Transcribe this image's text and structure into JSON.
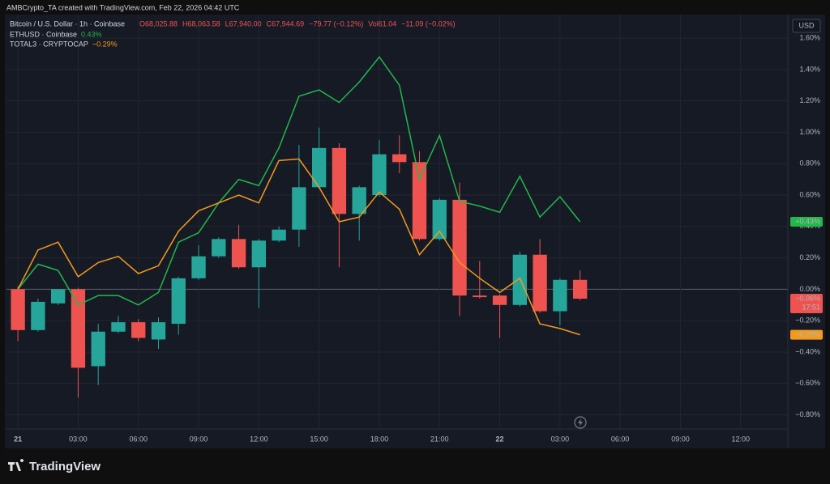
{
  "header": "AMBCrypto_TA created with TradingView.com, Feb 22, 2026 04:42 UTC",
  "footer_logo": "TradingView",
  "chart_data": {
    "type": "candlestick",
    "currency": "USD",
    "candles": {
      "name": "Bitcoin / U.S. Dollar · 1h · Coinbase",
      "ohlc_text": [
        "O68,025.88",
        "H68,063.58",
        "L67,940.00",
        "C67,944.69",
        "−79.77 (−0.12%)",
        "Vol61.04",
        "−11.09 (−0.02%)"
      ],
      "up_color": "#26a69a",
      "down_color": "#ef5350",
      "open": [
        0.0,
        -0.26,
        -0.09,
        0.0,
        -0.49,
        -0.27,
        -0.21,
        -0.32,
        -0.22,
        0.07,
        0.21,
        0.32,
        0.14,
        0.31,
        0.38,
        0.65,
        0.9,
        0.48,
        0.6,
        0.86,
        0.81,
        0.32,
        0.57,
        -0.04,
        -0.04,
        -0.1,
        0.22,
        -0.14,
        0.06
      ],
      "high": [
        0.02,
        -0.06,
        0.0,
        0.01,
        -0.22,
        -0.17,
        -0.19,
        -0.18,
        0.08,
        0.28,
        0.33,
        0.41,
        0.32,
        0.4,
        0.92,
        1.03,
        0.93,
        0.66,
        0.95,
        0.98,
        0.88,
        0.58,
        0.68,
        0.18,
        -0.03,
        0.24,
        0.32,
        0.07,
        0.12
      ],
      "low": [
        -0.33,
        -0.27,
        -0.1,
        -0.69,
        -0.61,
        -0.28,
        -0.33,
        -0.38,
        -0.29,
        0.06,
        0.2,
        0.13,
        -0.12,
        0.3,
        0.27,
        0.64,
        0.14,
        0.31,
        0.59,
        0.74,
        0.31,
        0.31,
        -0.17,
        -0.06,
        -0.31,
        -0.11,
        -0.15,
        -0.23,
        -0.07
      ],
      "close": [
        -0.26,
        -0.08,
        0.0,
        -0.5,
        -0.27,
        -0.21,
        -0.31,
        -0.21,
        0.07,
        0.21,
        0.32,
        0.14,
        0.31,
        0.38,
        0.65,
        0.9,
        0.48,
        0.65,
        0.86,
        0.81,
        0.32,
        0.57,
        -0.04,
        -0.05,
        -0.1,
        0.22,
        -0.14,
        0.06,
        -0.06
      ],
      "last": {
        "value": -0.06,
        "label": "−0.06%"
      },
      "countdown": "17:51"
    },
    "x": [
      0,
      1,
      2,
      3,
      4,
      5,
      6,
      7,
      8,
      9,
      10,
      11,
      12,
      13,
      14,
      15,
      16,
      17,
      18,
      19,
      20,
      21,
      22,
      23,
      24,
      25,
      26,
      27,
      28
    ],
    "series": [
      {
        "name": "ETHUSD · Coinbase",
        "legend_value": "0.43%",
        "color": "#22b84a",
        "values": [
          0.0,
          0.16,
          0.12,
          -0.1,
          -0.04,
          -0.04,
          -0.1,
          -0.02,
          0.3,
          0.36,
          0.55,
          0.7,
          0.66,
          0.9,
          1.23,
          1.27,
          1.19,
          1.32,
          1.48,
          1.3,
          0.7,
          0.98,
          0.56,
          0.53,
          0.49,
          0.72,
          0.46,
          0.59,
          0.43
        ],
        "last": {
          "value": 0.43,
          "label": "+0.43%"
        }
      },
      {
        "name": "TOTAL3 · CRYPTOCAP",
        "legend_value": "−0.29%",
        "color": "#f29a1e",
        "values": [
          0.0,
          0.25,
          0.3,
          0.08,
          0.17,
          0.21,
          0.1,
          0.15,
          0.37,
          0.5,
          0.55,
          0.6,
          0.55,
          0.82,
          0.83,
          0.65,
          0.43,
          0.46,
          0.62,
          0.51,
          0.22,
          0.37,
          0.17,
          0.07,
          -0.02,
          0.07,
          -0.22,
          -0.25,
          -0.29
        ],
        "last": {
          "value": -0.29,
          "label": "−0.29%"
        }
      }
    ],
    "xlim": [
      -0.57,
      38.35
    ],
    "xticks": [
      {
        "value": 0,
        "label": "21"
      },
      {
        "value": 3,
        "label": "03:00"
      },
      {
        "value": 6,
        "label": "06:00"
      },
      {
        "value": 9,
        "label": "09:00"
      },
      {
        "value": 12,
        "label": "12:00"
      },
      {
        "value": 15,
        "label": "15:00"
      },
      {
        "value": 18,
        "label": "18:00"
      },
      {
        "value": 21,
        "label": "21:00"
      },
      {
        "value": 24,
        "label": "22"
      },
      {
        "value": 27,
        "label": "03:00"
      },
      {
        "value": 30,
        "label": "06:00"
      },
      {
        "value": 33,
        "label": "09:00"
      },
      {
        "value": 36,
        "label": "12:00"
      }
    ],
    "ylim": [
      -0.89,
      1.75
    ],
    "yticks": [
      {
        "value": 1.6,
        "label": "1.60%"
      },
      {
        "value": 1.4,
        "label": "1.40%"
      },
      {
        "value": 1.2,
        "label": "1.20%"
      },
      {
        "value": 1.0,
        "label": "1.00%"
      },
      {
        "value": 0.8,
        "label": "0.80%"
      },
      {
        "value": 0.6,
        "label": "0.60%"
      },
      {
        "value": 0.4,
        "label": "0.40%"
      },
      {
        "value": 0.2,
        "label": "0.20%"
      },
      {
        "value": 0,
        "label": "0.00%"
      },
      {
        "value": -0.2,
        "label": "−0.20%"
      },
      {
        "value": -0.4,
        "label": "−0.40%"
      },
      {
        "value": -0.6,
        "label": "−0.60%"
      },
      {
        "value": -0.8,
        "label": "−0.80%"
      }
    ],
    "grid": true
  }
}
